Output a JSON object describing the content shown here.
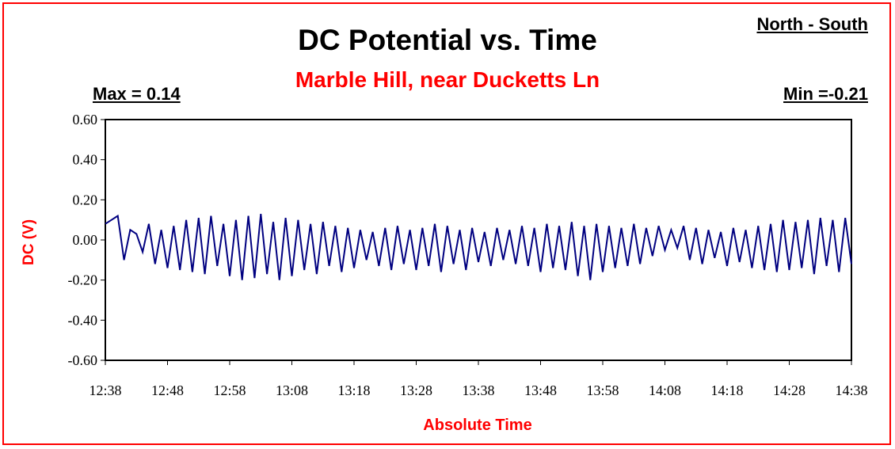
{
  "chart_data": {
    "type": "line",
    "title": "DC Potential vs. Time",
    "subtitle": "Marble Hill, near Ducketts Ln",
    "direction": "North - South",
    "max_label": "Max = 0.14",
    "min_label": "Min =-0.21",
    "xlabel": "Absolute Time",
    "ylabel": "DC (V)",
    "ylim": [
      -0.6,
      0.6
    ],
    "yticks": [
      "0.60",
      "0.40",
      "0.20",
      "0.00",
      "-0.20",
      "-0.40",
      "-0.60"
    ],
    "xticks": [
      "12:38",
      "12:48",
      "12:58",
      "13:08",
      "13:18",
      "13:28",
      "13:38",
      "13:48",
      "13:58",
      "14:08",
      "14:18",
      "14:28",
      "14:38"
    ],
    "grid": false,
    "series": [
      {
        "color": "#000080",
        "x_minutes_from_start": [
          0,
          1,
          2,
          3,
          4,
          5,
          6,
          7,
          8,
          9,
          10,
          11,
          12,
          13,
          14,
          15,
          16,
          17,
          18,
          19,
          20,
          21,
          22,
          23,
          24,
          25,
          26,
          27,
          28,
          29,
          30,
          31,
          32,
          33,
          34,
          35,
          36,
          37,
          38,
          39,
          40,
          41,
          42,
          43,
          44,
          45,
          46,
          47,
          48,
          49,
          50,
          51,
          52,
          53,
          54,
          55,
          56,
          57,
          58,
          59,
          60,
          61,
          62,
          63,
          64,
          65,
          66,
          67,
          68,
          69,
          70,
          71,
          72,
          73,
          74,
          75,
          76,
          77,
          78,
          79,
          80,
          81,
          82,
          83,
          84,
          85,
          86,
          87,
          88,
          89,
          90,
          91,
          92,
          93,
          94,
          95,
          96,
          97,
          98,
          99,
          100,
          101,
          102,
          103,
          104,
          105,
          106,
          107,
          108,
          109,
          110,
          111,
          112,
          113,
          114,
          115,
          116,
          117,
          118,
          119,
          120
        ],
        "values": [
          0.08,
          0.1,
          0.12,
          -0.1,
          0.05,
          0.03,
          -0.06,
          0.08,
          -0.12,
          0.05,
          -0.14,
          0.07,
          -0.15,
          0.1,
          -0.16,
          0.11,
          -0.17,
          0.12,
          -0.13,
          0.08,
          -0.18,
          0.1,
          -0.2,
          0.12,
          -0.19,
          0.13,
          -0.17,
          0.09,
          -0.2,
          0.11,
          -0.18,
          0.1,
          -0.15,
          0.08,
          -0.17,
          0.09,
          -0.13,
          0.07,
          -0.16,
          0.06,
          -0.14,
          0.05,
          -0.1,
          0.04,
          -0.13,
          0.06,
          -0.15,
          0.07,
          -0.12,
          0.05,
          -0.15,
          0.06,
          -0.13,
          0.08,
          -0.16,
          0.07,
          -0.12,
          0.05,
          -0.15,
          0.06,
          -0.11,
          0.04,
          -0.13,
          0.06,
          -0.1,
          0.05,
          -0.12,
          0.07,
          -0.13,
          0.06,
          -0.16,
          0.08,
          -0.14,
          0.07,
          -0.15,
          0.09,
          -0.18,
          0.07,
          -0.2,
          0.08,
          -0.16,
          0.07,
          -0.14,
          0.06,
          -0.13,
          0.08,
          -0.12,
          0.06,
          -0.08,
          0.07,
          -0.05,
          0.05,
          -0.04,
          0.07,
          -0.1,
          0.06,
          -0.12,
          0.05,
          -0.09,
          0.04,
          -0.13,
          0.06,
          -0.11,
          0.05,
          -0.14,
          0.07,
          -0.15,
          0.08,
          -0.16,
          0.1,
          -0.15,
          0.09,
          -0.14,
          0.1,
          -0.17,
          0.11,
          -0.13,
          0.1,
          -0.16,
          0.11,
          -0.12
        ]
      }
    ]
  }
}
